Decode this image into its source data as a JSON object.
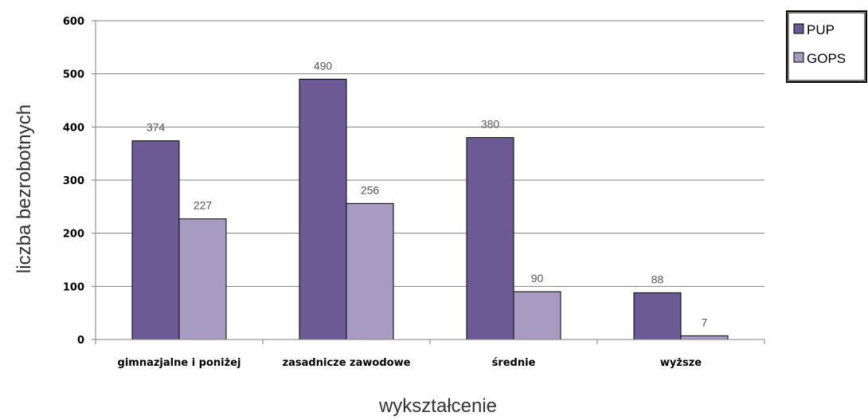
{
  "chart_data": {
    "type": "bar",
    "categories": [
      "gimnazjalne i poniżej",
      "zasadnicze zawodowe",
      "średnie",
      "wyższe"
    ],
    "series": [
      {
        "name": "PUP",
        "values": [
          374,
          490,
          380,
          88
        ],
        "color": "#6b5a94"
      },
      {
        "name": "GOPS",
        "values": [
          227,
          256,
          90,
          7
        ],
        "color": "#a89bc2"
      }
    ],
    "title": "",
    "xlabel": "wykształcenie",
    "ylabel": "liczba bezrobotnych",
    "ylim": [
      0,
      600
    ],
    "yticks": [
      "0",
      "100",
      "200",
      "300",
      "400",
      "500",
      "600"
    ],
    "grid": true,
    "legend_position": "top-right"
  }
}
